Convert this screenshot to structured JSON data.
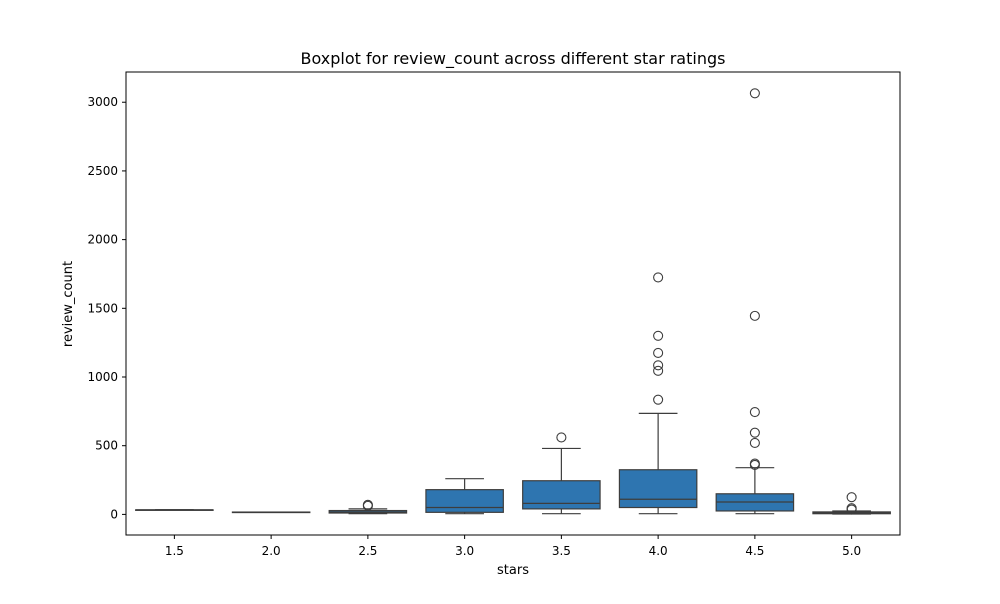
{
  "chart_data": {
    "type": "box",
    "title": "Boxplot for review_count across different star ratings",
    "xlabel": "stars",
    "ylabel": "review_count",
    "categories": [
      "1.5",
      "2.0",
      "2.5",
      "3.0",
      "3.5",
      "4.0",
      "4.5",
      "5.0"
    ],
    "yticks": [
      0,
      500,
      1000,
      1500,
      2000,
      2500,
      3000
    ],
    "ylim": [
      -150,
      3220
    ],
    "grid": false,
    "box_color": "#2e75b0",
    "line_color": "#3d3d3d",
    "boxes": [
      {
        "category": "1.5",
        "whislo": 33,
        "q1": 33,
        "med": 33,
        "q3": 33,
        "whishi": 33,
        "fliers": []
      },
      {
        "category": "2.0",
        "whislo": 17,
        "q1": 17,
        "med": 17,
        "q3": 17,
        "whishi": 17,
        "fliers": []
      },
      {
        "category": "2.5",
        "whislo": 5,
        "q1": 10,
        "med": 18,
        "q3": 28,
        "whishi": 40,
        "fliers": [
          62,
          70
        ]
      },
      {
        "category": "3.0",
        "whislo": 5,
        "q1": 15,
        "med": 50,
        "q3": 180,
        "whishi": 260,
        "fliers": []
      },
      {
        "category": "3.5",
        "whislo": 5,
        "q1": 40,
        "med": 80,
        "q3": 245,
        "whishi": 480,
        "fliers": [
          560
        ]
      },
      {
        "category": "4.0",
        "whislo": 5,
        "q1": 50,
        "med": 110,
        "q3": 325,
        "whishi": 735,
        "fliers": [
          835,
          1045,
          1085,
          1175,
          1300,
          1725
        ]
      },
      {
        "category": "4.5",
        "whislo": 5,
        "q1": 25,
        "med": 90,
        "q3": 150,
        "whishi": 340,
        "fliers": [
          360,
          370,
          520,
          595,
          745,
          1445,
          3065
        ]
      },
      {
        "category": "5.0",
        "whislo": 3,
        "q1": 5,
        "med": 9,
        "q3": 18,
        "whishi": 25,
        "fliers": [
          35,
          45,
          125
        ]
      }
    ]
  }
}
